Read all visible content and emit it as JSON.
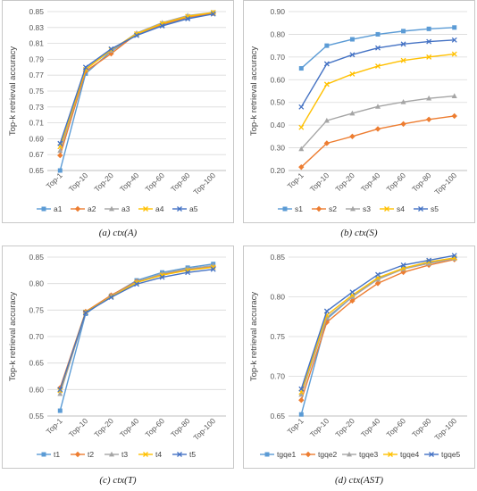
{
  "chart_data": [
    {
      "type": "line",
      "caption": "(a)   ctx(A)",
      "ylabel": "Top-k retrieval accuracy",
      "ylim": [
        0.65,
        0.85
      ],
      "yticks": [
        0.65,
        0.67,
        0.69,
        0.71,
        0.73,
        0.75,
        0.77,
        0.79,
        0.81,
        0.83,
        0.85
      ],
      "ytick_decimals": 2,
      "categories": [
        "Top-1",
        "Top-10",
        "Top-20",
        "Top-40",
        "Top-60",
        "Top-80",
        "Top-100"
      ],
      "legend_position": "bottom",
      "series": [
        {
          "name": "a1",
          "color": "#5b9bd5",
          "marker": "square",
          "values": [
            0.65,
            0.772,
            0.8,
            0.821,
            0.833,
            0.842,
            0.848
          ]
        },
        {
          "name": "a2",
          "color": "#ed7d31",
          "marker": "diamond",
          "values": [
            0.669,
            0.775,
            0.797,
            0.822,
            0.834,
            0.843,
            0.848
          ]
        },
        {
          "name": "a3",
          "color": "#a5a5a5",
          "marker": "triangle",
          "values": [
            0.675,
            0.778,
            0.801,
            0.823,
            0.836,
            0.845,
            0.849
          ]
        },
        {
          "name": "a4",
          "color": "#ffc000",
          "marker": "x",
          "values": [
            0.68,
            0.777,
            0.802,
            0.822,
            0.835,
            0.844,
            0.849
          ]
        },
        {
          "name": "a5",
          "color": "#4472c4",
          "marker": "x",
          "values": [
            0.684,
            0.78,
            0.803,
            0.82,
            0.832,
            0.841,
            0.847
          ]
        }
      ]
    },
    {
      "type": "line",
      "caption": "(b)   ctx(S)",
      "ylabel": "Top-k retrieval accuracy",
      "ylim": [
        0.2,
        0.9
      ],
      "yticks": [
        0.2,
        0.3,
        0.4,
        0.5,
        0.6,
        0.7,
        0.8,
        0.9
      ],
      "ytick_decimals": 2,
      "categories": [
        "Top-1",
        "Top-10",
        "Top-20",
        "Top-40",
        "Top-60",
        "Top-80",
        "Top-100"
      ],
      "legend_position": "bottom",
      "series": [
        {
          "name": "s1",
          "color": "#5b9bd5",
          "marker": "square",
          "values": [
            0.65,
            0.75,
            0.778,
            0.8,
            0.814,
            0.824,
            0.83
          ]
        },
        {
          "name": "s2",
          "color": "#ed7d31",
          "marker": "diamond",
          "values": [
            0.215,
            0.32,
            0.35,
            0.383,
            0.405,
            0.425,
            0.44
          ]
        },
        {
          "name": "s3",
          "color": "#a5a5a5",
          "marker": "triangle",
          "values": [
            0.295,
            0.42,
            0.452,
            0.482,
            0.502,
            0.518,
            0.528
          ]
        },
        {
          "name": "s4",
          "color": "#ffc000",
          "marker": "x",
          "values": [
            0.39,
            0.58,
            0.625,
            0.66,
            0.685,
            0.7,
            0.713
          ]
        },
        {
          "name": "s5",
          "color": "#4472c4",
          "marker": "x",
          "values": [
            0.48,
            0.67,
            0.71,
            0.74,
            0.757,
            0.768,
            0.775
          ]
        }
      ]
    },
    {
      "type": "line",
      "caption": "(c)   ctx(T)",
      "ylabel": "Top-k retrieval accuracy",
      "ylim": [
        0.55,
        0.85
      ],
      "yticks": [
        0.55,
        0.6,
        0.65,
        0.7,
        0.75,
        0.8,
        0.85
      ],
      "ytick_decimals": 2,
      "categories": [
        "Top-1",
        "Top-10",
        "Top-20",
        "Top-40",
        "Top-60",
        "Top-80",
        "Top-100"
      ],
      "legend_position": "bottom",
      "series": [
        {
          "name": "t1",
          "color": "#5b9bd5",
          "marker": "square",
          "values": [
            0.56,
            0.743,
            0.777,
            0.806,
            0.821,
            0.83,
            0.837
          ]
        },
        {
          "name": "t2",
          "color": "#ed7d31",
          "marker": "diamond",
          "values": [
            0.603,
            0.747,
            0.778,
            0.804,
            0.817,
            0.826,
            0.832
          ]
        },
        {
          "name": "t3",
          "color": "#a5a5a5",
          "marker": "triangle",
          "values": [
            0.592,
            0.745,
            0.776,
            0.803,
            0.819,
            0.828,
            0.834
          ]
        },
        {
          "name": "t4",
          "color": "#ffc000",
          "marker": "x",
          "values": [
            0.598,
            0.746,
            0.775,
            0.802,
            0.816,
            0.825,
            0.831
          ]
        },
        {
          "name": "t5",
          "color": "#4472c4",
          "marker": "x",
          "values": [
            0.6,
            0.745,
            0.774,
            0.799,
            0.812,
            0.821,
            0.827
          ]
        }
      ]
    },
    {
      "type": "line",
      "caption": "(d)   ctx(AST)",
      "ylabel": "Top-k retrieval accuracy",
      "ylim": [
        0.65,
        0.85
      ],
      "yticks": [
        0.65,
        0.7,
        0.75,
        0.8,
        0.85
      ],
      "ytick_decimals": 2,
      "categories": [
        "Top-1",
        "Top-10",
        "Top-20",
        "Top-40",
        "Top-60",
        "Top-80",
        "Top-100"
      ],
      "legend_position": "bottom",
      "series": [
        {
          "name": "tgqe1",
          "color": "#5b9bd5",
          "marker": "square",
          "values": [
            0.652,
            0.772,
            0.8,
            0.823,
            0.836,
            0.843,
            0.849
          ]
        },
        {
          "name": "tgqe2",
          "color": "#ed7d31",
          "marker": "diamond",
          "values": [
            0.67,
            0.768,
            0.795,
            0.817,
            0.831,
            0.84,
            0.847
          ]
        },
        {
          "name": "tgqe3",
          "color": "#a5a5a5",
          "marker": "triangle",
          "values": [
            0.677,
            0.774,
            0.8,
            0.822,
            0.835,
            0.842,
            0.848
          ]
        },
        {
          "name": "tgqe4",
          "color": "#ffc000",
          "marker": "x",
          "values": [
            0.68,
            0.777,
            0.802,
            0.824,
            0.836,
            0.844,
            0.849
          ]
        },
        {
          "name": "tgqe5",
          "color": "#4472c4",
          "marker": "x",
          "values": [
            0.684,
            0.782,
            0.806,
            0.828,
            0.84,
            0.846,
            0.852
          ]
        }
      ]
    }
  ]
}
